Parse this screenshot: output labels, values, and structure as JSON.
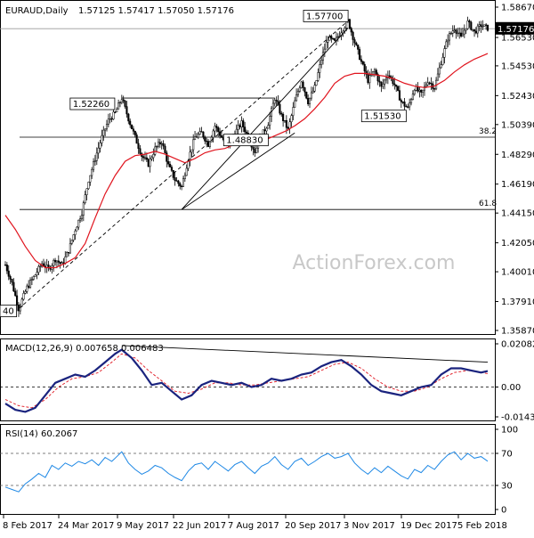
{
  "chart_data": [
    {
      "type": "candlestick",
      "header": {
        "symbol": "EURAUD,Daily",
        "ohlc": "1.57125 1.57417 1.57050 1.57176"
      },
      "watermark": "ActionForex.com",
      "ylim": [
        1.3587,
        1.5867
      ],
      "y_ticks": [
        "1.58670",
        "1.56530",
        "1.54530",
        "1.52430",
        "1.50390",
        "1.48290",
        "1.46190",
        "1.44150",
        "1.42050",
        "1.40010",
        "1.37910",
        "1.35870"
      ],
      "x_labels": [
        "8 Feb 2017",
        "24 Mar 2017",
        "9 May 2017",
        "22 Jun 2017",
        "7 Aug 2017",
        "20 Sep 2017",
        "3 Nov 2017",
        "19 Dec 2017",
        "5 Feb 2018"
      ],
      "last_price_label": "1.57176",
      "last_price": 1.57176,
      "price_path": [
        [
          0,
          1.405
        ],
        [
          4,
          1.392
        ],
        [
          8,
          1.374
        ],
        [
          13,
          1.389
        ],
        [
          18,
          1.398
        ],
        [
          22,
          1.406
        ],
        [
          26,
          1.402
        ],
        [
          30,
          1.409
        ],
        [
          34,
          1.405
        ],
        [
          38,
          1.415
        ],
        [
          42,
          1.43
        ],
        [
          46,
          1.442
        ],
        [
          50,
          1.465
        ],
        [
          54,
          1.48
        ],
        [
          58,
          1.495
        ],
        [
          62,
          1.507
        ],
        [
          66,
          1.512
        ],
        [
          70,
          1.5226
        ],
        [
          74,
          1.508
        ],
        [
          78,
          1.495
        ],
        [
          82,
          1.482
        ],
        [
          86,
          1.476
        ],
        [
          90,
          1.487
        ],
        [
          94,
          1.492
        ],
        [
          98,
          1.475
        ],
        [
          102,
          1.465
        ],
        [
          106,
          1.46
        ],
        [
          110,
          1.48
        ],
        [
          114,
          1.495
        ],
        [
          118,
          1.498
        ],
        [
          122,
          1.49
        ],
        [
          126,
          1.503
        ],
        [
          130,
          1.495
        ],
        [
          134,
          1.488
        ],
        [
          138,
          1.498
        ],
        [
          142,
          1.505
        ],
        [
          146,
          1.495
        ],
        [
          150,
          1.485
        ],
        [
          154,
          1.496
        ],
        [
          158,
          1.505
        ],
        [
          162,
          1.5226
        ],
        [
          166,
          1.51
        ],
        [
          170,
          1.5
        ],
        [
          174,
          1.52
        ],
        [
          178,
          1.535
        ],
        [
          182,
          1.52
        ],
        [
          186,
          1.53
        ],
        [
          190,
          1.55
        ],
        [
          194,
          1.565
        ],
        [
          198,
          1.562
        ],
        [
          202,
          1.57
        ],
        [
          206,
          1.577
        ],
        [
          210,
          1.562
        ],
        [
          214,
          1.548
        ],
        [
          218,
          1.535
        ],
        [
          222,
          1.542
        ],
        [
          226,
          1.53
        ],
        [
          230,
          1.54
        ],
        [
          234,
          1.532
        ],
        [
          238,
          1.52
        ],
        [
          242,
          1.5153
        ],
        [
          246,
          1.53
        ],
        [
          250,
          1.525
        ],
        [
          254,
          1.535
        ],
        [
          258,
          1.53
        ],
        [
          262,
          1.548
        ],
        [
          266,
          1.565
        ],
        [
          270,
          1.572
        ],
        [
          274,
          1.565
        ],
        [
          278,
          1.576
        ],
        [
          282,
          1.569
        ],
        [
          286,
          1.574
        ],
        [
          290,
          1.5718
        ]
      ],
      "ma_path": [
        [
          0,
          1.44
        ],
        [
          6,
          1.43
        ],
        [
          12,
          1.418
        ],
        [
          18,
          1.408
        ],
        [
          24,
          1.403
        ],
        [
          30,
          1.403
        ],
        [
          36,
          1.406
        ],
        [
          42,
          1.41
        ],
        [
          48,
          1.42
        ],
        [
          54,
          1.438
        ],
        [
          60,
          1.455
        ],
        [
          66,
          1.468
        ],
        [
          72,
          1.478
        ],
        [
          78,
          1.482
        ],
        [
          84,
          1.483
        ],
        [
          90,
          1.485
        ],
        [
          96,
          1.483
        ],
        [
          102,
          1.48
        ],
        [
          108,
          1.477
        ],
        [
          114,
          1.48
        ],
        [
          120,
          1.484
        ],
        [
          126,
          1.486
        ],
        [
          132,
          1.487
        ],
        [
          138,
          1.49
        ],
        [
          144,
          1.492
        ],
        [
          150,
          1.492
        ],
        [
          156,
          1.493
        ],
        [
          162,
          1.496
        ],
        [
          168,
          1.499
        ],
        [
          174,
          1.503
        ],
        [
          180,
          1.508
        ],
        [
          186,
          1.515
        ],
        [
          192,
          1.523
        ],
        [
          198,
          1.533
        ],
        [
          204,
          1.538
        ],
        [
          210,
          1.54
        ],
        [
          216,
          1.54
        ],
        [
          222,
          1.539
        ],
        [
          228,
          1.538
        ],
        [
          234,
          1.536
        ],
        [
          240,
          1.533
        ],
        [
          246,
          1.531
        ],
        [
          252,
          1.53
        ],
        [
          258,
          1.531
        ],
        [
          264,
          1.535
        ],
        [
          270,
          1.541
        ],
        [
          276,
          1.546
        ],
        [
          282,
          1.55
        ],
        [
          288,
          1.553
        ],
        [
          290,
          1.554
        ]
      ],
      "fib_levels": [
        {
          "label": "38.2",
          "price": 1.495
        },
        {
          "label": "61.8",
          "price": 1.444
        }
      ],
      "last_price_line": 1.5715,
      "annotations": [
        {
          "text": "1.57700",
          "x": 206,
          "price": 1.577
        },
        {
          "text": "1.52260",
          "x": 70,
          "price": 1.5226
        },
        {
          "text": "1.51530",
          "x": 242,
          "price": 1.5153
        },
        {
          "text": "1.48830",
          "x": 158,
          "price": 1.4883
        },
        {
          "text": "40",
          "x": 0,
          "price": 1.374
        }
      ],
      "trendlines": [
        {
          "style": "dashed",
          "from": [
            8,
            1.374
          ],
          "to": [
            206,
            1.577
          ]
        },
        {
          "style": "solid",
          "from": [
            70,
            1.5226
          ],
          "to": [
            162,
            1.5226
          ]
        },
        {
          "style": "solid",
          "from": [
            106,
            1.444
          ],
          "to": [
            174,
            1.498
          ]
        },
        {
          "style": "solid",
          "from": [
            106,
            1.444
          ],
          "to": [
            206,
            1.572
          ]
        }
      ],
      "n_bars": 291
    },
    {
      "type": "line",
      "title": "MACD(12,26,9) 0.007658 0.006483",
      "ylim": [
        -0.014386,
        0.020827
      ],
      "y_ticks": [
        "0.020827",
        "0.00",
        "-0.014386"
      ],
      "macd": [
        [
          0,
          -0.008
        ],
        [
          6,
          -0.011
        ],
        [
          12,
          -0.012
        ],
        [
          18,
          -0.01
        ],
        [
          24,
          -0.004
        ],
        [
          30,
          0.002
        ],
        [
          36,
          0.004
        ],
        [
          42,
          0.006
        ],
        [
          48,
          0.005
        ],
        [
          54,
          0.008
        ],
        [
          60,
          0.012
        ],
        [
          66,
          0.016
        ],
        [
          70,
          0.018
        ],
        [
          76,
          0.014
        ],
        [
          82,
          0.008
        ],
        [
          88,
          0.001
        ],
        [
          94,
          0.002
        ],
        [
          100,
          -0.002
        ],
        [
          106,
          -0.006
        ],
        [
          112,
          -0.004
        ],
        [
          118,
          0.001
        ],
        [
          124,
          0.003
        ],
        [
          130,
          0.002
        ],
        [
          136,
          0.001
        ],
        [
          142,
          0.002
        ],
        [
          148,
          0.0
        ],
        [
          154,
          0.001
        ],
        [
          160,
          0.004
        ],
        [
          166,
          0.003
        ],
        [
          172,
          0.004
        ],
        [
          178,
          0.006
        ],
        [
          184,
          0.007
        ],
        [
          190,
          0.01
        ],
        [
          196,
          0.012
        ],
        [
          202,
          0.013
        ],
        [
          208,
          0.01
        ],
        [
          214,
          0.006
        ],
        [
          220,
          0.001
        ],
        [
          226,
          -0.002
        ],
        [
          232,
          -0.003
        ],
        [
          238,
          -0.004
        ],
        [
          244,
          -0.002
        ],
        [
          250,
          0.0
        ],
        [
          256,
          0.001
        ],
        [
          262,
          0.006
        ],
        [
          268,
          0.009
        ],
        [
          274,
          0.009
        ],
        [
          280,
          0.008
        ],
        [
          286,
          0.007
        ],
        [
          290,
          0.0077
        ]
      ],
      "signal": [
        [
          0,
          -0.006
        ],
        [
          8,
          -0.009
        ],
        [
          16,
          -0.01
        ],
        [
          24,
          -0.006
        ],
        [
          32,
          0.0
        ],
        [
          40,
          0.004
        ],
        [
          48,
          0.005
        ],
        [
          56,
          0.007
        ],
        [
          64,
          0.012
        ],
        [
          70,
          0.016
        ],
        [
          78,
          0.014
        ],
        [
          86,
          0.008
        ],
        [
          94,
          0.003
        ],
        [
          102,
          -0.002
        ],
        [
          110,
          -0.003
        ],
        [
          118,
          -0.001
        ],
        [
          126,
          0.002
        ],
        [
          134,
          0.002
        ],
        [
          142,
          0.001
        ],
        [
          150,
          0.001
        ],
        [
          158,
          0.002
        ],
        [
          166,
          0.003
        ],
        [
          174,
          0.004
        ],
        [
          182,
          0.005
        ],
        [
          190,
          0.008
        ],
        [
          198,
          0.011
        ],
        [
          206,
          0.012
        ],
        [
          214,
          0.009
        ],
        [
          222,
          0.004
        ],
        [
          230,
          0.0
        ],
        [
          238,
          -0.002
        ],
        [
          246,
          -0.002
        ],
        [
          254,
          0.0
        ],
        [
          262,
          0.004
        ],
        [
          270,
          0.007
        ],
        [
          278,
          0.008
        ],
        [
          286,
          0.007
        ],
        [
          290,
          0.0065
        ]
      ],
      "trendline": {
        "from": [
          70,
          0.02
        ],
        "to": [
          290,
          0.012
        ]
      }
    },
    {
      "type": "line",
      "title": "RSI(14) 60.2067",
      "ylim": [
        0,
        100
      ],
      "y_ticks": [
        "100",
        "70",
        "30",
        "0"
      ],
      "levels": [
        70,
        30
      ],
      "rsi": [
        [
          0,
          28
        ],
        [
          4,
          25
        ],
        [
          8,
          22
        ],
        [
          12,
          32
        ],
        [
          16,
          38
        ],
        [
          20,
          45
        ],
        [
          24,
          40
        ],
        [
          28,
          55
        ],
        [
          32,
          50
        ],
        [
          36,
          58
        ],
        [
          40,
          54
        ],
        [
          44,
          60
        ],
        [
          48,
          57
        ],
        [
          52,
          62
        ],
        [
          56,
          55
        ],
        [
          60,
          65
        ],
        [
          64,
          60
        ],
        [
          68,
          68
        ],
        [
          70,
          72
        ],
        [
          74,
          58
        ],
        [
          78,
          50
        ],
        [
          82,
          44
        ],
        [
          86,
          48
        ],
        [
          90,
          55
        ],
        [
          94,
          52
        ],
        [
          98,
          45
        ],
        [
          102,
          40
        ],
        [
          106,
          36
        ],
        [
          110,
          48
        ],
        [
          114,
          56
        ],
        [
          118,
          58
        ],
        [
          122,
          50
        ],
        [
          126,
          60
        ],
        [
          130,
          54
        ],
        [
          134,
          48
        ],
        [
          138,
          56
        ],
        [
          142,
          60
        ],
        [
          146,
          52
        ],
        [
          150,
          45
        ],
        [
          154,
          54
        ],
        [
          158,
          58
        ],
        [
          162,
          66
        ],
        [
          166,
          56
        ],
        [
          170,
          50
        ],
        [
          174,
          60
        ],
        [
          178,
          64
        ],
        [
          182,
          55
        ],
        [
          186,
          60
        ],
        [
          190,
          66
        ],
        [
          194,
          70
        ],
        [
          198,
          64
        ],
        [
          202,
          66
        ],
        [
          206,
          70
        ],
        [
          210,
          58
        ],
        [
          214,
          50
        ],
        [
          218,
          44
        ],
        [
          222,
          52
        ],
        [
          226,
          46
        ],
        [
          230,
          54
        ],
        [
          234,
          48
        ],
        [
          238,
          42
        ],
        [
          242,
          38
        ],
        [
          246,
          50
        ],
        [
          250,
          46
        ],
        [
          254,
          55
        ],
        [
          258,
          50
        ],
        [
          262,
          60
        ],
        [
          266,
          68
        ],
        [
          270,
          72
        ],
        [
          274,
          62
        ],
        [
          278,
          70
        ],
        [
          282,
          64
        ],
        [
          286,
          66
        ],
        [
          290,
          60.2
        ]
      ]
    }
  ]
}
